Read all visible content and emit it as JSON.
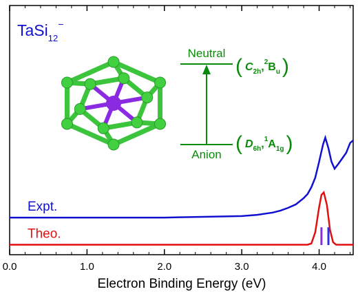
{
  "chart_data": {
    "type": "line",
    "title_parts": [
      "TaSi",
      "12",
      "−"
    ],
    "xlabel": "Electron Binding Energy (eV)",
    "xlim": [
      0,
      4.44
    ],
    "ylim": [
      0,
      1
    ],
    "xticks": [
      {
        "value": 0,
        "label": "0.0"
      },
      {
        "value": 1,
        "label": "1.0"
      },
      {
        "value": 2,
        "label": "2.0"
      },
      {
        "value": 3,
        "label": "3.0"
      },
      {
        "value": 4,
        "label": "4.0"
      }
    ],
    "xminorticks": [
      0.2,
      0.4,
      0.6,
      0.8,
      1.2,
      1.4,
      1.6,
      1.8,
      2.2,
      2.4,
      2.6,
      2.8,
      3.2,
      3.4,
      3.6,
      3.8,
      4.2,
      4.4
    ],
    "series": [
      {
        "name": "Expt.",
        "color": "#1010d0",
        "x": [
          0,
          0.5,
          1,
          1.5,
          2,
          2.5,
          3,
          3.2,
          3.4,
          3.5,
          3.6,
          3.7,
          3.8,
          3.85,
          3.9,
          3.95,
          4.0,
          4.05,
          4.08,
          4.12,
          4.16,
          4.2,
          4.25,
          4.3,
          4.35,
          4.4,
          4.44
        ],
        "values": [
          0.149,
          0.149,
          0.149,
          0.149,
          0.149,
          0.152,
          0.155,
          0.16,
          0.169,
          0.177,
          0.188,
          0.202,
          0.227,
          0.243,
          0.271,
          0.309,
          0.373,
          0.442,
          0.47,
          0.428,
          0.373,
          0.345,
          0.365,
          0.387,
          0.409,
          0.448,
          0.459
        ]
      },
      {
        "name": "Theo.",
        "color": "#e01010",
        "x": [
          0,
          1,
          2,
          3,
          3.85,
          3.9,
          3.95,
          4.0,
          4.03,
          4.06,
          4.1,
          4.14,
          4.18,
          4.22,
          4.44
        ],
        "values": [
          0.04,
          0.04,
          0.04,
          0.04,
          0.04,
          0.045,
          0.09,
          0.19,
          0.24,
          0.25,
          0.2,
          0.1,
          0.05,
          0.04,
          0.04
        ]
      }
    ],
    "sticks": [
      {
        "x": 4.03,
        "height": 0.11,
        "color": "#8a2be2"
      },
      {
        "x": 4.12,
        "height": 0.11,
        "color": "#3030e0"
      }
    ],
    "diagram": {
      "upper": "Neutral",
      "lower": "Anion",
      "upper_state": [
        "(",
        "C",
        "2h",
        ",",
        "2",
        "B",
        "u",
        ")"
      ],
      "lower_state": [
        "(",
        "D",
        "6h",
        ",",
        "1",
        "A",
        "1g",
        ")"
      ],
      "color": "#0a8a0a"
    }
  }
}
